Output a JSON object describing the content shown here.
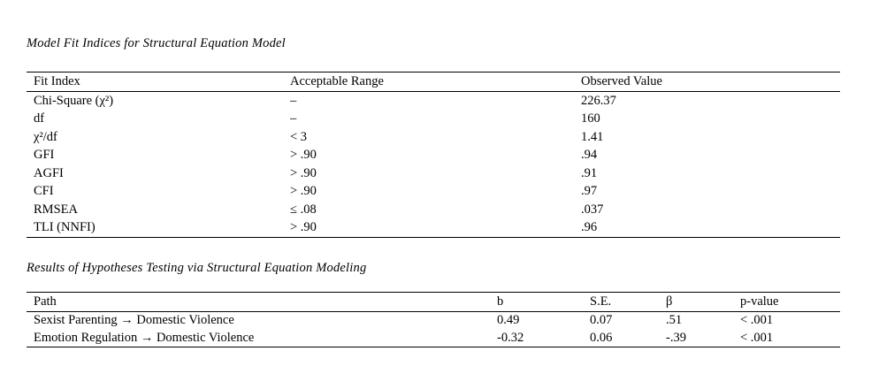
{
  "page": {
    "background_color": "#ffffff",
    "text_color": "#000000",
    "rule_color": "#000000"
  },
  "tables": [
    {
      "title": "Model Fit Indices for Structural Equation Model",
      "columns": [
        "Fit Index",
        "Acceptable Range",
        "Observed Value"
      ],
      "rows": [
        [
          "Chi-Square (χ²)",
          "–",
          "226.37"
        ],
        [
          "df",
          "–",
          "160"
        ],
        [
          "χ²/df",
          "< 3",
          "1.41"
        ],
        [
          "GFI",
          "> .90",
          ".94"
        ],
        [
          "AGFI",
          "> .90",
          ".91"
        ],
        [
          "CFI",
          "> .90",
          ".97"
        ],
        [
          "RMSEA",
          "≤ .08",
          ".037"
        ],
        [
          "TLI (NNFI)",
          "> .90",
          ".96"
        ]
      ]
    },
    {
      "title": "Results of Hypotheses Testing via Structural Equation Modeling",
      "columns": [
        "Path",
        "b",
        "S.E.",
        "β",
        "p-value"
      ],
      "rows": [
        [
          "Sexist Parenting → Domestic Violence",
          "0.49",
          "0.07",
          ".51",
          "< .001"
        ],
        [
          "Emotion Regulation → Domestic Violence",
          "-0.32",
          "0.06",
          "-.39",
          "< .001"
        ]
      ]
    }
  ]
}
